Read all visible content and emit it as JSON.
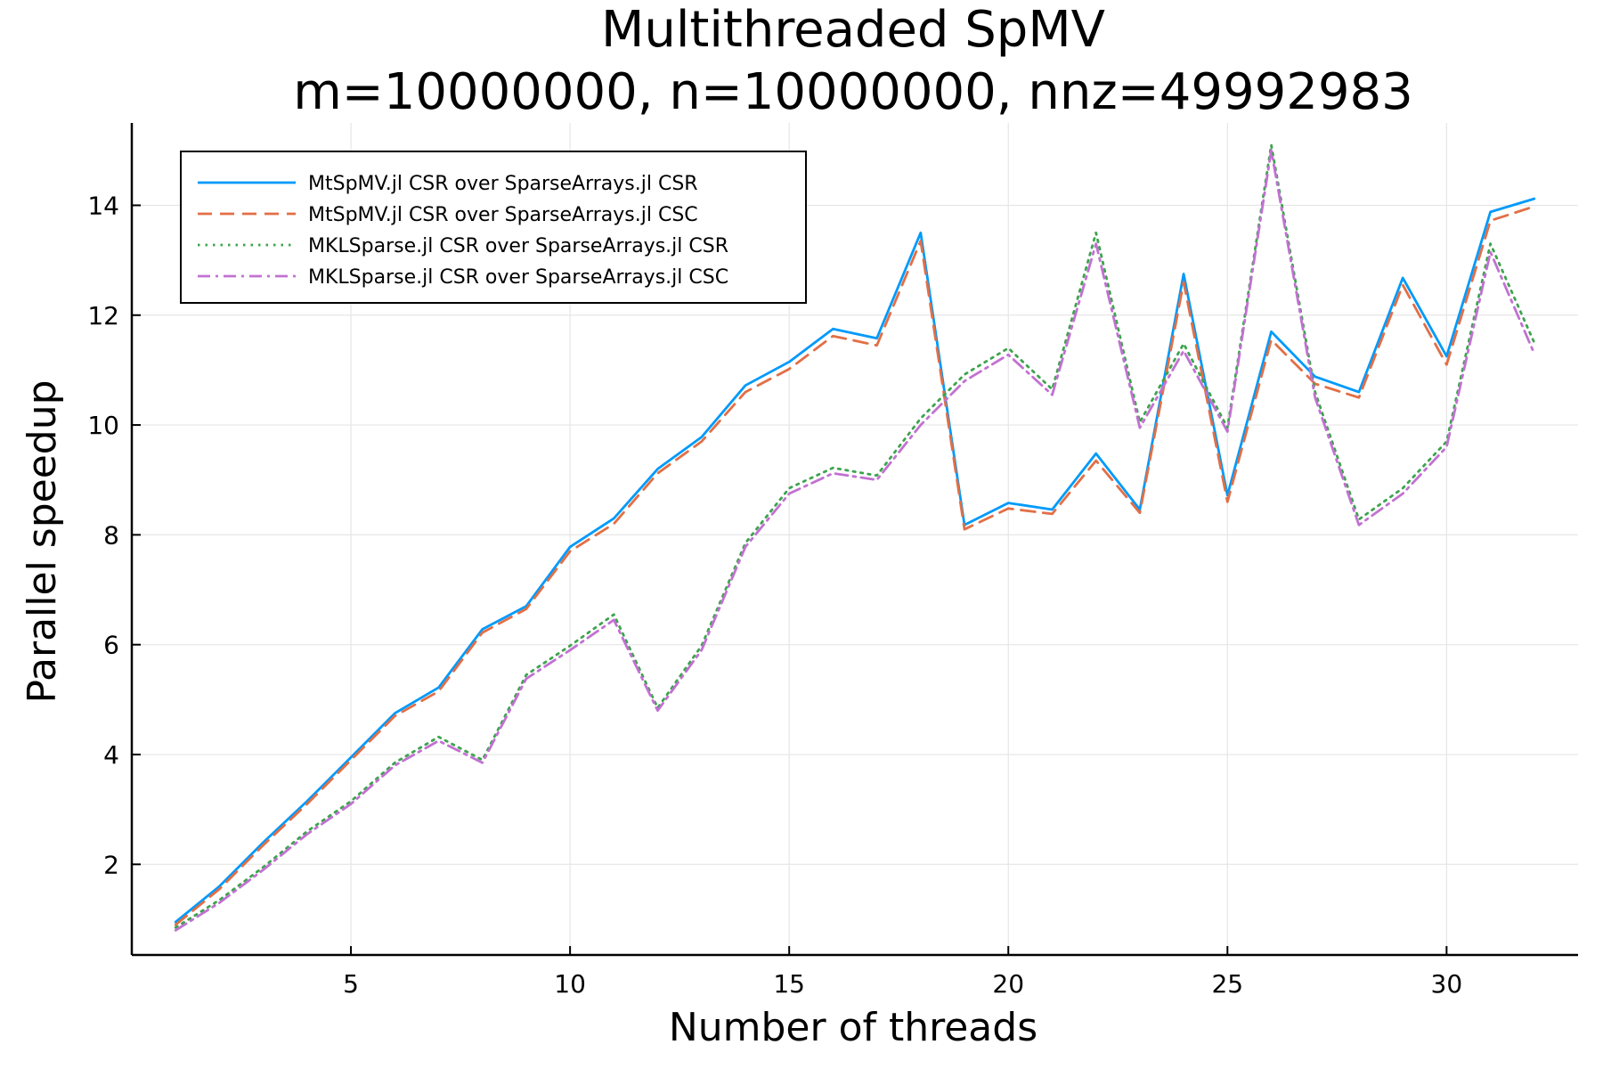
{
  "chart_data": {
    "type": "line",
    "title": "Multithreaded SpMV",
    "subtitle": "m=10000000, n=10000000, nnz=49992983",
    "xlabel": "Number of threads",
    "ylabel": "Parallel speedup",
    "xlim": [
      0,
      33
    ],
    "ylim": [
      0.35,
      15.5
    ],
    "xticks": [
      5,
      10,
      15,
      20,
      25,
      30
    ],
    "yticks": [
      2,
      4,
      6,
      8,
      10,
      12,
      14
    ],
    "grid": true,
    "legend_position": "top-left",
    "x": [
      1,
      2,
      3,
      4,
      5,
      6,
      7,
      8,
      9,
      10,
      11,
      12,
      13,
      14,
      15,
      16,
      17,
      18,
      19,
      20,
      21,
      22,
      23,
      24,
      25,
      26,
      27,
      28,
      29,
      30,
      31,
      32
    ],
    "series": [
      {
        "name": "MtSpMV.jl CSR over SparseArrays.jl CSR",
        "color": "#009AFA",
        "dash": "solid",
        "values": [
          0.95,
          1.6,
          2.4,
          3.15,
          3.95,
          4.75,
          5.22,
          6.28,
          6.7,
          7.78,
          8.3,
          9.2,
          9.78,
          10.72,
          11.15,
          11.75,
          11.58,
          13.5,
          8.18,
          8.58,
          8.46,
          9.48,
          8.46,
          12.75,
          8.72,
          11.7,
          10.88,
          10.6,
          12.68,
          11.25,
          13.88,
          14.12
        ]
      },
      {
        "name": "MtSpMV.jl CSR over SparseArrays.jl CSC",
        "color": "#E26F46",
        "dash": "dashed",
        "values": [
          0.9,
          1.55,
          2.35,
          3.1,
          3.9,
          4.7,
          5.15,
          6.22,
          6.65,
          7.7,
          8.2,
          9.12,
          9.7,
          10.6,
          11.02,
          11.62,
          11.45,
          13.35,
          8.1,
          8.48,
          8.38,
          9.35,
          8.4,
          12.6,
          8.6,
          11.55,
          10.75,
          10.5,
          12.55,
          11.1,
          13.72,
          13.98
        ]
      },
      {
        "name": "MKLSparse.jl CSR over SparseArrays.jl CSR",
        "color": "#3DA44E",
        "dash": "dotted",
        "values": [
          0.85,
          1.35,
          1.95,
          2.6,
          3.15,
          3.85,
          4.32,
          3.9,
          5.45,
          5.98,
          6.55,
          4.85,
          5.98,
          7.85,
          8.85,
          9.22,
          9.08,
          10.12,
          10.92,
          11.4,
          10.65,
          13.5,
          10.05,
          11.48,
          9.95,
          15.1,
          10.6,
          8.28,
          8.85,
          9.7,
          13.3,
          11.5
        ]
      },
      {
        "name": "MKLSparse.jl CSR over SparseArrays.jl CSC",
        "color": "#C271D2",
        "dash": "dashdot",
        "values": [
          0.8,
          1.3,
          1.9,
          2.55,
          3.1,
          3.8,
          4.25,
          3.85,
          5.38,
          5.9,
          6.45,
          4.8,
          5.9,
          7.78,
          8.75,
          9.12,
          9.0,
          10.0,
          10.8,
          11.28,
          10.55,
          13.3,
          9.95,
          11.35,
          9.88,
          15.0,
          10.5,
          8.18,
          8.75,
          9.6,
          13.15,
          11.3
        ]
      }
    ]
  }
}
